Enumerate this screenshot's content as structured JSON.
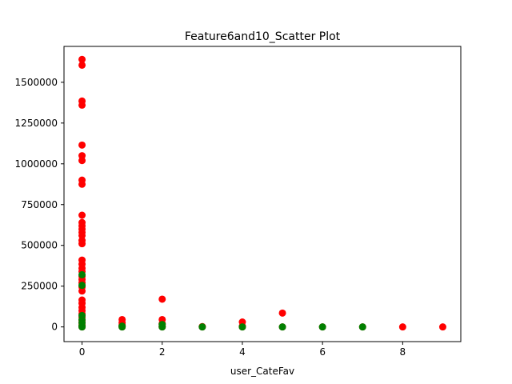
{
  "chart_data": {
    "type": "scatter",
    "title": "Feature6and10_Scatter Plot",
    "xlabel": "user_CateFav",
    "ylabel": "",
    "xlim": [
      -0.45,
      9.45
    ],
    "ylim": [
      -90000,
      1720000
    ],
    "xticks": [
      0,
      2,
      4,
      6,
      8
    ],
    "xtick_labels": [
      "0",
      "2",
      "4",
      "6",
      "8"
    ],
    "yticks": [
      0,
      250000,
      500000,
      750000,
      1000000,
      1250000,
      1500000
    ],
    "ytick_labels": [
      "0",
      "250000",
      "500000",
      "750000",
      "1000000",
      "1250000",
      "1500000"
    ],
    "grid": false,
    "legend": "none",
    "series": [
      {
        "color": "#ff0000",
        "points": [
          [
            0,
            1640000
          ],
          [
            0,
            1605000
          ],
          [
            0,
            1385000
          ],
          [
            0,
            1360000
          ],
          [
            0,
            1115000
          ],
          [
            0,
            1050000
          ],
          [
            0,
            1020000
          ],
          [
            0,
            900000
          ],
          [
            0,
            875000
          ],
          [
            0,
            685000
          ],
          [
            0,
            640000
          ],
          [
            0,
            620000
          ],
          [
            0,
            600000
          ],
          [
            0,
            580000
          ],
          [
            0,
            560000
          ],
          [
            0,
            530000
          ],
          [
            0,
            510000
          ],
          [
            0,
            410000
          ],
          [
            0,
            385000
          ],
          [
            0,
            360000
          ],
          [
            0,
            340000
          ],
          [
            0,
            310000
          ],
          [
            0,
            290000
          ],
          [
            0,
            270000
          ],
          [
            0,
            245000
          ],
          [
            0,
            220000
          ],
          [
            0,
            165000
          ],
          [
            0,
            145000
          ],
          [
            0,
            120000
          ],
          [
            0,
            100000
          ],
          [
            0,
            80000
          ],
          [
            0,
            60000
          ],
          [
            0,
            40000
          ],
          [
            0,
            25000
          ],
          [
            0,
            10000
          ],
          [
            0,
            0
          ],
          [
            1,
            45000
          ],
          [
            1,
            25000
          ],
          [
            1,
            10000
          ],
          [
            1,
            0
          ],
          [
            2,
            170000
          ],
          [
            2,
            45000
          ],
          [
            2,
            20000
          ],
          [
            2,
            5000
          ],
          [
            2,
            0
          ],
          [
            3,
            2000
          ],
          [
            3,
            0
          ],
          [
            4,
            30000
          ],
          [
            4,
            5000
          ],
          [
            4,
            0
          ],
          [
            5,
            85000
          ],
          [
            5,
            0
          ],
          [
            6,
            0
          ],
          [
            7,
            0
          ],
          [
            8,
            0
          ],
          [
            9,
            0
          ]
        ]
      },
      {
        "color": "#008000",
        "points": [
          [
            0,
            320000
          ],
          [
            0,
            255000
          ],
          [
            0,
            70000
          ],
          [
            0,
            45000
          ],
          [
            0,
            25000
          ],
          [
            0,
            5000
          ],
          [
            0,
            0
          ],
          [
            1,
            5000
          ],
          [
            1,
            0
          ],
          [
            2,
            15000
          ],
          [
            2,
            0
          ],
          [
            3,
            0
          ],
          [
            4,
            0
          ],
          [
            5,
            0
          ],
          [
            6,
            0
          ],
          [
            7,
            0
          ]
        ]
      }
    ]
  }
}
